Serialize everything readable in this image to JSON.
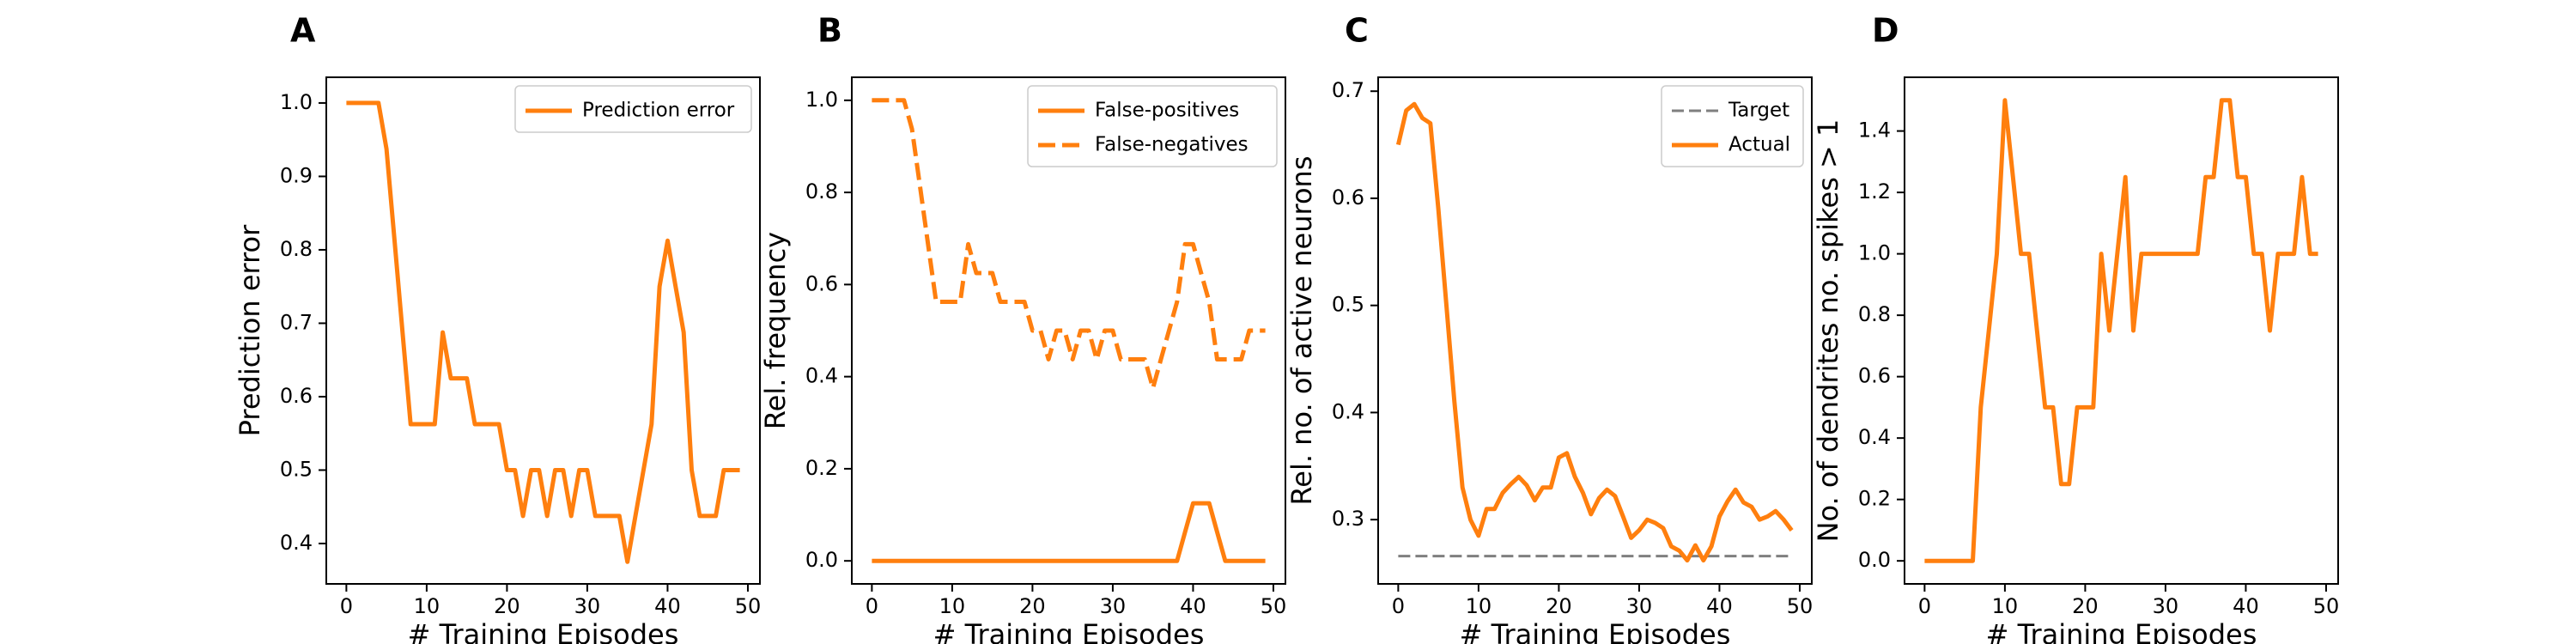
{
  "colors": {
    "accent": "#ff7f0e",
    "target": "#7f7f7f"
  },
  "chart_data": [
    {
      "type": "line",
      "panel_letter": "A",
      "xlabel": "# Training Episodes",
      "ylabel": "Prediction error",
      "xlim": [
        -2.5,
        51.5
      ],
      "ylim": [
        0.345,
        1.035
      ],
      "xticks": [
        0,
        10,
        20,
        30,
        40,
        50
      ],
      "yticks": [
        0.4,
        0.5,
        0.6,
        0.7,
        0.8,
        0.9,
        1.0
      ],
      "yticklabels": [
        "0.4",
        "0.5",
        "0.6",
        "0.7",
        "0.8",
        "0.9",
        "1.0"
      ],
      "legend_position": "top-right",
      "series": [
        {
          "name": "Prediction error",
          "style": "solid",
          "color": "#ff7f0e",
          "x": [
            0,
            1,
            2,
            3,
            4,
            5,
            6,
            7,
            8,
            9,
            10,
            11,
            12,
            13,
            14,
            15,
            16,
            17,
            18,
            19,
            20,
            21,
            22,
            23,
            24,
            25,
            26,
            27,
            28,
            29,
            30,
            31,
            32,
            33,
            34,
            35,
            36,
            37,
            38,
            39,
            40,
            41,
            42,
            43,
            44,
            45,
            46,
            47,
            48,
            49
          ],
          "y": [
            1.0,
            1.0,
            1.0,
            1.0,
            1.0,
            0.9375,
            0.8125,
            0.6875,
            0.5625,
            0.5625,
            0.5625,
            0.5625,
            0.6875,
            0.625,
            0.625,
            0.625,
            0.5625,
            0.5625,
            0.5625,
            0.5625,
            0.5,
            0.5,
            0.4375,
            0.5,
            0.5,
            0.4375,
            0.5,
            0.5,
            0.4375,
            0.5,
            0.5,
            0.4375,
            0.4375,
            0.4375,
            0.4375,
            0.375,
            0.4375,
            0.5,
            0.5625,
            0.75,
            0.8125,
            0.75,
            0.6875,
            0.5,
            0.4375,
            0.4375,
            0.4375,
            0.5,
            0.5,
            0.5
          ]
        }
      ]
    },
    {
      "type": "line",
      "panel_letter": "B",
      "xlabel": "# Training Episodes",
      "ylabel": "Rel. frequency",
      "xlim": [
        -2.5,
        51.5
      ],
      "ylim": [
        -0.05,
        1.05
      ],
      "xticks": [
        0,
        10,
        20,
        30,
        40,
        50
      ],
      "yticks": [
        0.0,
        0.2,
        0.4,
        0.6,
        0.8,
        1.0
      ],
      "yticklabels": [
        "0.0",
        "0.2",
        "0.4",
        "0.6",
        "0.8",
        "1.0"
      ],
      "legend_position": "top-right",
      "series": [
        {
          "name": "False-positives",
          "style": "solid",
          "color": "#ff7f0e",
          "x": [
            0,
            1,
            2,
            3,
            4,
            5,
            6,
            7,
            8,
            9,
            10,
            11,
            12,
            13,
            14,
            15,
            16,
            17,
            18,
            19,
            20,
            21,
            22,
            23,
            24,
            25,
            26,
            27,
            28,
            29,
            30,
            31,
            32,
            33,
            34,
            35,
            36,
            37,
            38,
            39,
            40,
            41,
            42,
            43,
            44,
            45,
            46,
            47,
            48,
            49
          ],
          "y": [
            0,
            0,
            0,
            0,
            0,
            0,
            0,
            0,
            0,
            0,
            0,
            0,
            0,
            0,
            0,
            0,
            0,
            0,
            0,
            0,
            0,
            0,
            0,
            0,
            0,
            0,
            0,
            0,
            0,
            0,
            0,
            0,
            0,
            0,
            0,
            0,
            0,
            0,
            0,
            0.0625,
            0.125,
            0.125,
            0.125,
            0.0625,
            0,
            0,
            0,
            0,
            0,
            0
          ]
        },
        {
          "name": "False-negatives",
          "style": "dashed",
          "color": "#ff7f0e",
          "x": [
            0,
            1,
            2,
            3,
            4,
            5,
            6,
            7,
            8,
            9,
            10,
            11,
            12,
            13,
            14,
            15,
            16,
            17,
            18,
            19,
            20,
            21,
            22,
            23,
            24,
            25,
            26,
            27,
            28,
            29,
            30,
            31,
            32,
            33,
            34,
            35,
            36,
            37,
            38,
            39,
            40,
            41,
            42,
            43,
            44,
            45,
            46,
            47,
            48,
            49
          ],
          "y": [
            1.0,
            1.0,
            1.0,
            1.0,
            1.0,
            0.9375,
            0.8125,
            0.6875,
            0.5625,
            0.5625,
            0.5625,
            0.5625,
            0.6875,
            0.625,
            0.625,
            0.625,
            0.5625,
            0.5625,
            0.5625,
            0.5625,
            0.5,
            0.5,
            0.4375,
            0.5,
            0.5,
            0.4375,
            0.5,
            0.5,
            0.4375,
            0.5,
            0.5,
            0.4375,
            0.4375,
            0.4375,
            0.4375,
            0.375,
            0.4375,
            0.5,
            0.5625,
            0.6875,
            0.6875,
            0.625,
            0.5625,
            0.4375,
            0.4375,
            0.4375,
            0.4375,
            0.5,
            0.5,
            0.5
          ]
        }
      ]
    },
    {
      "type": "line",
      "panel_letter": "C",
      "xlabel": "# Training Episodes",
      "ylabel": "Rel. no. of active neurons",
      "xlim": [
        -2.5,
        51.5
      ],
      "ylim": [
        0.24,
        0.713
      ],
      "xticks": [
        0,
        10,
        20,
        30,
        40,
        50
      ],
      "yticks": [
        0.3,
        0.4,
        0.5,
        0.6,
        0.7
      ],
      "yticklabels": [
        "0.3",
        "0.4",
        "0.5",
        "0.6",
        "0.7"
      ],
      "legend_position": "top-right",
      "series": [
        {
          "name": "Target",
          "style": "dashed-thin",
          "color": "#7f7f7f",
          "x": [
            0,
            49
          ],
          "y": [
            0.266,
            0.266
          ]
        },
        {
          "name": "Actual",
          "style": "solid",
          "color": "#ff7f0e",
          "x": [
            0,
            1,
            2,
            3,
            4,
            5,
            6,
            7,
            8,
            9,
            10,
            11,
            12,
            13,
            14,
            15,
            16,
            17,
            18,
            19,
            20,
            21,
            22,
            23,
            24,
            25,
            26,
            27,
            28,
            29,
            30,
            31,
            32,
            33,
            34,
            35,
            36,
            37,
            38,
            39,
            40,
            41,
            42,
            43,
            44,
            45,
            46,
            47,
            48,
            49
          ],
          "y": [
            0.65,
            0.682,
            0.688,
            0.675,
            0.67,
            0.59,
            0.5,
            0.41,
            0.33,
            0.3,
            0.285,
            0.31,
            0.31,
            0.325,
            0.333,
            0.34,
            0.332,
            0.318,
            0.33,
            0.33,
            0.358,
            0.362,
            0.34,
            0.325,
            0.305,
            0.32,
            0.328,
            0.322,
            0.303,
            0.283,
            0.29,
            0.3,
            0.297,
            0.292,
            0.275,
            0.271,
            0.262,
            0.276,
            0.262,
            0.275,
            0.303,
            0.317,
            0.328,
            0.316,
            0.312,
            0.3,
            0.303,
            0.308,
            0.3,
            0.29
          ]
        }
      ]
    },
    {
      "type": "line",
      "panel_letter": "D",
      "xlabel": "# Training Episodes",
      "ylabel": "No. of dendrites no. spikes > 1",
      "xlim": [
        -2.5,
        51.5
      ],
      "ylim": [
        -0.075,
        1.575
      ],
      "xticks": [
        0,
        10,
        20,
        30,
        40,
        50
      ],
      "yticks": [
        0.0,
        0.2,
        0.4,
        0.6,
        0.8,
        1.0,
        1.2,
        1.4
      ],
      "yticklabels": [
        "0.0",
        "0.2",
        "0.4",
        "0.6",
        "0.8",
        "1.0",
        "1.2",
        "1.4"
      ],
      "legend_position": "none",
      "series": [
        {
          "name": "",
          "style": "solid",
          "color": "#ff7f0e",
          "x": [
            0,
            1,
            2,
            3,
            4,
            5,
            6,
            7,
            8,
            9,
            10,
            11,
            12,
            13,
            14,
            15,
            16,
            17,
            18,
            19,
            20,
            21,
            22,
            23,
            24,
            25,
            26,
            27,
            28,
            29,
            30,
            31,
            32,
            33,
            34,
            35,
            36,
            37,
            38,
            39,
            40,
            41,
            42,
            43,
            44,
            45,
            46,
            47,
            48,
            49
          ],
          "y": [
            0,
            0,
            0,
            0,
            0,
            0,
            0,
            0.5,
            0.75,
            1.0,
            1.5,
            1.25,
            1.0,
            1.0,
            0.75,
            0.5,
            0.5,
            0.25,
            0.25,
            0.5,
            0.5,
            0.5,
            1.0,
            0.75,
            1.0,
            1.25,
            0.75,
            1.0,
            1.0,
            1.0,
            1.0,
            1.0,
            1.0,
            1.0,
            1.0,
            1.25,
            1.25,
            1.5,
            1.5,
            1.25,
            1.25,
            1.0,
            1.0,
            0.75,
            1.0,
            1.0,
            1.0,
            1.25,
            1.0,
            1.0
          ]
        }
      ]
    }
  ]
}
